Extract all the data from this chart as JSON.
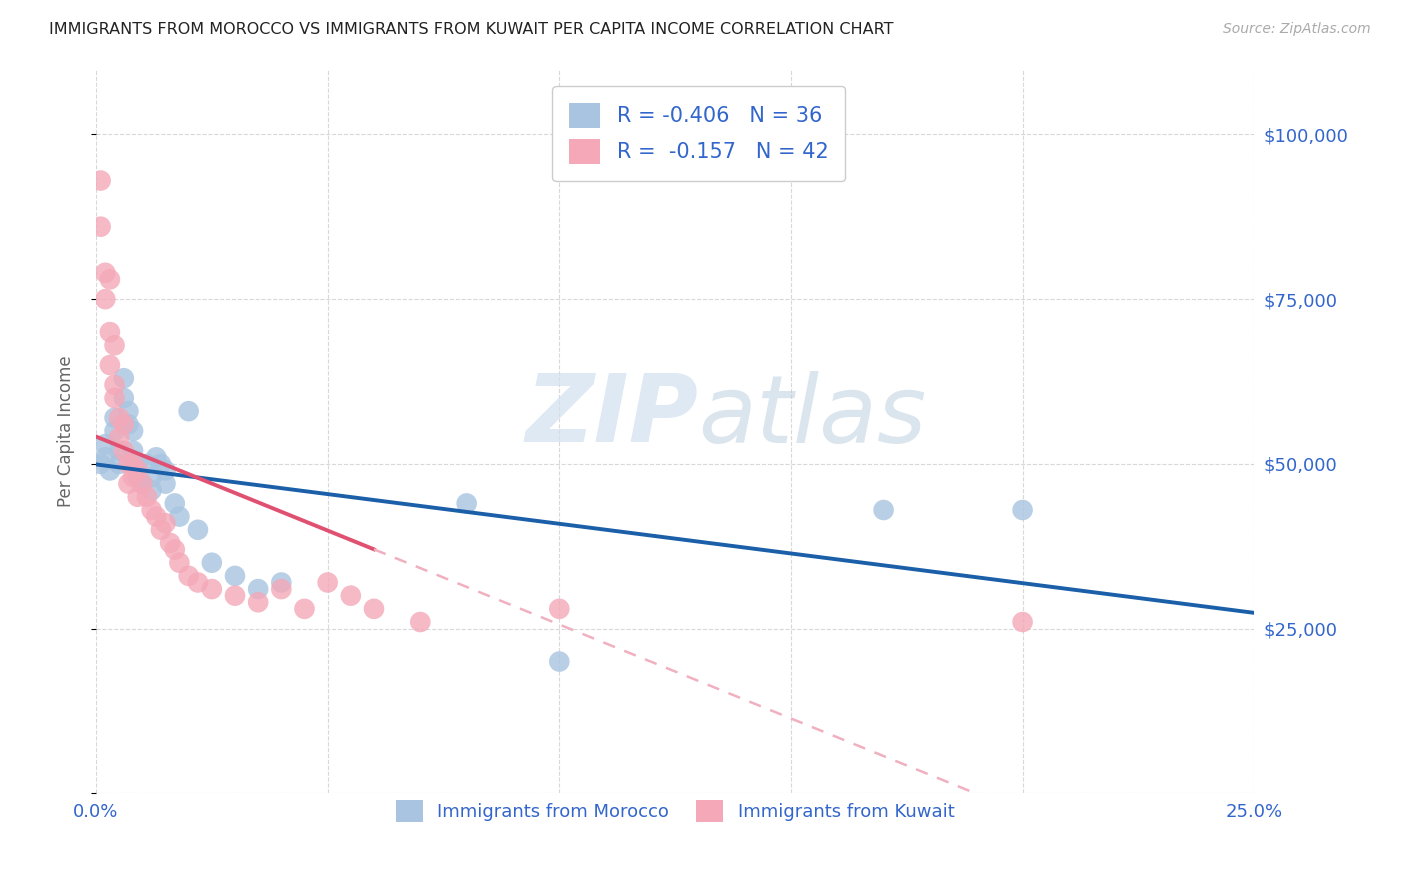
{
  "title": "IMMIGRANTS FROM MOROCCO VS IMMIGRANTS FROM KUWAIT PER CAPITA INCOME CORRELATION CHART",
  "source": "Source: ZipAtlas.com",
  "ylabel": "Per Capita Income",
  "xlim": [
    0.0,
    0.25
  ],
  "ylim": [
    0,
    110000
  ],
  "xticks": [
    0.0,
    0.05,
    0.1,
    0.15,
    0.2,
    0.25
  ],
  "xticklabels": [
    "0.0%",
    "",
    "",
    "",
    "",
    "25.0%"
  ],
  "yticks": [
    0,
    25000,
    50000,
    75000,
    100000
  ],
  "yticklabels": [
    "",
    "$25,000",
    "$50,000",
    "$75,000",
    "$100,000"
  ],
  "morocco_color": "#a8c4e0",
  "kuwait_color": "#f4a8b8",
  "morocco_R": "-0.406",
  "morocco_N": "36",
  "kuwait_R": "-0.157",
  "kuwait_N": "42",
  "legend_label_morocco": "Immigrants from Morocco",
  "legend_label_kuwait": "Immigrants from Kuwait",
  "watermark_zip": "ZIP",
  "watermark_atlas": "atlas",
  "morocco_scatter": [
    [
      0.001,
      50000
    ],
    [
      0.002,
      51000
    ],
    [
      0.002,
      53000
    ],
    [
      0.003,
      49000
    ],
    [
      0.004,
      55000
    ],
    [
      0.004,
      57000
    ],
    [
      0.005,
      52000
    ],
    [
      0.005,
      50000
    ],
    [
      0.006,
      60000
    ],
    [
      0.006,
      63000
    ],
    [
      0.007,
      58000
    ],
    [
      0.007,
      56000
    ],
    [
      0.008,
      55000
    ],
    [
      0.008,
      52000
    ],
    [
      0.009,
      50000
    ],
    [
      0.009,
      48000
    ],
    [
      0.01,
      47000
    ],
    [
      0.011,
      50000
    ],
    [
      0.012,
      48000
    ],
    [
      0.012,
      46000
    ],
    [
      0.013,
      51000
    ],
    [
      0.014,
      50000
    ],
    [
      0.015,
      49000
    ],
    [
      0.015,
      47000
    ],
    [
      0.017,
      44000
    ],
    [
      0.018,
      42000
    ],
    [
      0.02,
      58000
    ],
    [
      0.022,
      40000
    ],
    [
      0.025,
      35000
    ],
    [
      0.03,
      33000
    ],
    [
      0.035,
      31000
    ],
    [
      0.04,
      32000
    ],
    [
      0.08,
      44000
    ],
    [
      0.1,
      20000
    ],
    [
      0.17,
      43000
    ],
    [
      0.2,
      43000
    ]
  ],
  "kuwait_scatter": [
    [
      0.001,
      93000
    ],
    [
      0.001,
      86000
    ],
    [
      0.002,
      79000
    ],
    [
      0.002,
      75000
    ],
    [
      0.003,
      70000
    ],
    [
      0.003,
      78000
    ],
    [
      0.003,
      65000
    ],
    [
      0.004,
      68000
    ],
    [
      0.004,
      62000
    ],
    [
      0.004,
      60000
    ],
    [
      0.005,
      57000
    ],
    [
      0.005,
      54000
    ],
    [
      0.006,
      56000
    ],
    [
      0.006,
      52000
    ],
    [
      0.007,
      50000
    ],
    [
      0.007,
      47000
    ],
    [
      0.008,
      50000
    ],
    [
      0.008,
      48000
    ],
    [
      0.009,
      49000
    ],
    [
      0.009,
      45000
    ],
    [
      0.01,
      47000
    ],
    [
      0.011,
      45000
    ],
    [
      0.012,
      43000
    ],
    [
      0.013,
      42000
    ],
    [
      0.014,
      40000
    ],
    [
      0.015,
      41000
    ],
    [
      0.016,
      38000
    ],
    [
      0.017,
      37000
    ],
    [
      0.018,
      35000
    ],
    [
      0.02,
      33000
    ],
    [
      0.022,
      32000
    ],
    [
      0.025,
      31000
    ],
    [
      0.03,
      30000
    ],
    [
      0.035,
      29000
    ],
    [
      0.04,
      31000
    ],
    [
      0.045,
      28000
    ],
    [
      0.05,
      32000
    ],
    [
      0.055,
      30000
    ],
    [
      0.06,
      28000
    ],
    [
      0.07,
      26000
    ],
    [
      0.1,
      28000
    ],
    [
      0.2,
      26000
    ]
  ],
  "morocco_line_color": "#1a5fa8",
  "kuwait_line_solid_color": "#e05070",
  "kuwait_line_dash_color": "#f0b0c0",
  "grid_color": "#d8d8d8",
  "grid_style": "--",
  "background_color": "#ffffff",
  "title_color": "#222222",
  "axis_label_color": "#666666",
  "tick_color": "#3366cc"
}
